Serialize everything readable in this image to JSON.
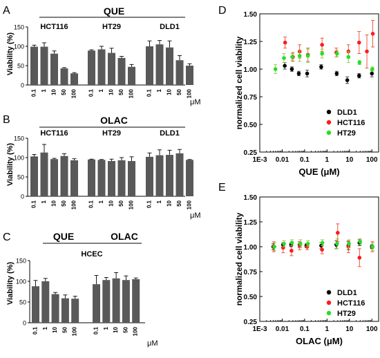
{
  "panels": {
    "A": {
      "letter": "A",
      "title": "QUE",
      "ylabel": "Viability (%)",
      "unit": "μM"
    },
    "B": {
      "letter": "B",
      "title": "OLAC",
      "ylabel": "Viability (%)",
      "unit": "μM"
    },
    "C": {
      "letter": "C",
      "title_left": "QUE",
      "title_right": "OLAC",
      "subtitle": "HCEC",
      "ylabel": "Viability (%)",
      "unit": "μM"
    },
    "D": {
      "letter": "D"
    },
    "E": {
      "letter": "E"
    }
  },
  "colors": {
    "bar": "#595959",
    "axis": "#000000",
    "DLD1": "#000000",
    "HCT116": "#ff1a1a",
    "HT29": "#22e022",
    "errorbar_DLD1": "#333333",
    "errorbar_HCT116": "#e8452a",
    "errorbar_HT29": "#8cc63f"
  },
  "chart_data": [
    {
      "panel": "A",
      "type": "bar",
      "title": "QUE",
      "ylabel": "Viability (%)",
      "ylim": [
        0,
        150
      ],
      "yticks": [
        0,
        50,
        100,
        150
      ],
      "unit": "μM",
      "groups": [
        {
          "name": "HCT116",
          "categories": [
            "0.1",
            "1",
            "10",
            "50",
            "100"
          ],
          "values": [
            99,
            99,
            81,
            43,
            30
          ],
          "errors": [
            4,
            10,
            7,
            2,
            2
          ]
        },
        {
          "name": "HT29",
          "categories": [
            "0.1",
            "1",
            "10",
            "50",
            "100"
          ],
          "values": [
            89,
            92,
            83,
            70,
            47
          ],
          "errors": [
            2,
            8,
            12,
            4,
            6
          ]
        },
        {
          "name": "DLD1",
          "categories": [
            "0.1",
            "1",
            "10",
            "50",
            "100"
          ],
          "values": [
            100,
            105,
            97,
            64,
            50
          ],
          "errors": [
            14,
            10,
            17,
            12,
            5
          ]
        }
      ]
    },
    {
      "panel": "B",
      "type": "bar",
      "title": "OLAC",
      "ylabel": "Viability (%)",
      "ylim": [
        0,
        150
      ],
      "yticks": [
        0,
        50,
        100,
        150
      ],
      "unit": "μM",
      "groups": [
        {
          "name": "HCT116",
          "categories": [
            "0.1",
            "1",
            "10",
            "50",
            "100"
          ],
          "values": [
            103,
            113,
            96,
            104,
            93
          ],
          "errors": [
            5,
            21,
            2,
            6,
            4
          ]
        },
        {
          "name": "HT29",
          "categories": [
            "0.1",
            "1",
            "10",
            "50",
            "100"
          ],
          "values": [
            95,
            94,
            91,
            93,
            91
          ],
          "errors": [
            1,
            1,
            5,
            7,
            11
          ]
        },
        {
          "name": "DLD1",
          "categories": [
            "0.1",
            "1",
            "10",
            "50",
            "100"
          ],
          "values": [
            102,
            106,
            107,
            111,
            94
          ],
          "errors": [
            10,
            14,
            12,
            10,
            1
          ]
        }
      ]
    },
    {
      "panel": "C",
      "type": "bar",
      "title": "HCEC",
      "ylabel": "Viability (%)",
      "ylim": [
        0,
        150
      ],
      "yticks": [
        0,
        50,
        100,
        150
      ],
      "unit": "μM",
      "groups": [
        {
          "name": "QUE",
          "categories": [
            "0.1",
            "1",
            "10",
            "50",
            "100"
          ],
          "values": [
            88,
            100,
            69,
            59,
            58
          ],
          "errors": [
            14,
            7,
            4,
            8,
            6
          ]
        },
        {
          "name": "OLAC",
          "categories": [
            "0.1",
            "1",
            "10",
            "50",
            "100"
          ],
          "values": [
            93,
            103,
            107,
            103,
            105
          ],
          "errors": [
            21,
            6,
            14,
            10,
            3
          ]
        }
      ]
    },
    {
      "panel": "D",
      "type": "scatter",
      "xlabel": "QUE (μM)",
      "ylabel": "normalized cell viability",
      "xscale": "log",
      "xlim": [
        0.001,
        200
      ],
      "ylim": [
        0.25,
        1.5
      ],
      "xticks": [
        {
          "v": 0.001,
          "label": "1E-3"
        },
        {
          "v": 0.01,
          "label": "0.01"
        },
        {
          "v": 0.1,
          "label": "0.1"
        },
        {
          "v": 1,
          "label": "1"
        },
        {
          "v": 10,
          "label": "10"
        },
        {
          "v": 100,
          "label": "100"
        }
      ],
      "yticks": [
        0.25,
        0.5,
        0.75,
        1.0,
        1.25,
        1.5
      ],
      "legend": "bottom-right",
      "series": [
        {
          "name": "DLD1",
          "points": [
            [
              0.013,
              1.03,
              0.03
            ],
            [
              0.027,
              1.0,
              0.02
            ],
            [
              0.055,
              0.96,
              0.02
            ],
            [
              0.13,
              0.96,
              0.03
            ],
            [
              0.55,
              1.02,
              0.02
            ],
            [
              2.7,
              0.96,
              0.02
            ],
            [
              8,
              0.9,
              0.03
            ],
            [
              27,
              0.94,
              0.02
            ],
            [
              100,
              0.96,
              0.03
            ]
          ]
        },
        {
          "name": "HCT116",
          "points": [
            [
              0.0135,
              1.24,
              0.05
            ],
            [
              0.03,
              1.11,
              0.04
            ],
            [
              0.06,
              1.16,
              0.06
            ],
            [
              0.14,
              1.13,
              0.06
            ],
            [
              0.6,
              1.22,
              0.06
            ],
            [
              2.6,
              1.15,
              0.04
            ],
            [
              9,
              1.16,
              0.06
            ],
            [
              27,
              1.24,
              0.1
            ],
            [
              60,
              1.16,
              0.15
            ],
            [
              110,
              1.32,
              0.12
            ]
          ]
        },
        {
          "name": "HT29",
          "points": [
            [
              0.005,
              1.0,
              0.04
            ],
            [
              0.012,
              1.1,
              0.04
            ],
            [
              0.028,
              1.11,
              0.03
            ],
            [
              0.06,
              1.12,
              0.05
            ],
            [
              0.14,
              1.12,
              0.06
            ],
            [
              0.6,
              1.14,
              0.04
            ],
            [
              2.8,
              1.14,
              0.03
            ],
            [
              9,
              1.11,
              0.05
            ],
            [
              28,
              1.06,
              0.02
            ],
            [
              105,
              1.0,
              0.02
            ]
          ]
        }
      ]
    },
    {
      "panel": "E",
      "type": "scatter",
      "xlabel": "OLAC (μM)",
      "ylabel": "normalized cell viability",
      "xscale": "log",
      "xlim": [
        0.001,
        200
      ],
      "ylim": [
        0.25,
        1.5
      ],
      "xticks": [
        {
          "v": 0.001,
          "label": "1E-3"
        },
        {
          "v": 0.01,
          "label": "0.01"
        },
        {
          "v": 0.1,
          "label": "0.1"
        },
        {
          "v": 1,
          "label": "1"
        },
        {
          "v": 10,
          "label": "10"
        },
        {
          "v": 100,
          "label": "100"
        }
      ],
      "yticks": [
        0.25,
        0.5,
        0.75,
        1.0,
        1.25,
        1.5
      ],
      "legend": "bottom-right",
      "series": [
        {
          "name": "DLD1",
          "points": [
            [
              0.004,
              1.0,
              0.03
            ],
            [
              0.011,
              1.02,
              0.02
            ],
            [
              0.025,
              1.02,
              0.02
            ],
            [
              0.06,
              1.02,
              0.03
            ],
            [
              0.12,
              1.01,
              0.02
            ],
            [
              0.55,
              1.01,
              0.03
            ],
            [
              2.6,
              1.02,
              0.04
            ],
            [
              9,
              1.01,
              0.04
            ],
            [
              28,
              1.04,
              0.03
            ],
            [
              100,
              1.0,
              0.02
            ]
          ]
        },
        {
          "name": "HCT116",
          "points": [
            [
              0.0042,
              1.0,
              0.05
            ],
            [
              0.011,
              0.99,
              0.05
            ],
            [
              0.026,
              0.96,
              0.05
            ],
            [
              0.06,
              1.01,
              0.04
            ],
            [
              0.13,
              1.0,
              0.03
            ],
            [
              0.6,
              0.97,
              0.04
            ],
            [
              3,
              1.14,
              0.09
            ],
            [
              9,
              1.0,
              0.06
            ],
            [
              28,
              0.89,
              0.09
            ],
            [
              105,
              1.0,
              0.05
            ]
          ]
        },
        {
          "name": "HT29",
          "points": [
            [
              0.0045,
              1.0,
              0.04
            ],
            [
              0.012,
              1.03,
              0.03
            ],
            [
              0.027,
              1.04,
              0.03
            ],
            [
              0.065,
              1.03,
              0.04
            ],
            [
              0.14,
              1.03,
              0.03
            ],
            [
              0.62,
              1.04,
              0.03
            ],
            [
              2.8,
              1.03,
              0.05
            ],
            [
              9.5,
              1.03,
              0.04
            ],
            [
              30,
              1.05,
              0.03
            ],
            [
              108,
              1.0,
              0.04
            ]
          ]
        }
      ]
    }
  ]
}
